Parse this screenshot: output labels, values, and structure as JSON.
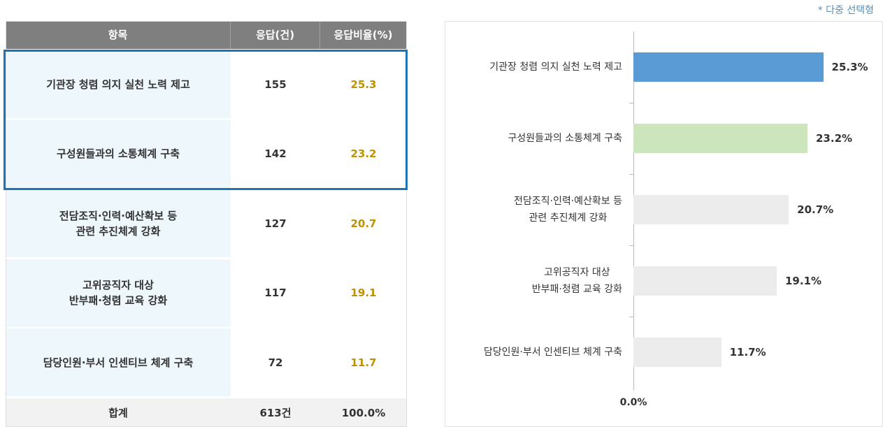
{
  "note": "* 다중 선택형",
  "table": {
    "header": [
      "항목",
      "응답(건)",
      "응답비율(%)"
    ],
    "rows": [
      [
        "기관장 청렴 의지 실천 노력 제고",
        155,
        25.3
      ],
      [
        "구성원들과의 소통체계 구축",
        142,
        23.2
      ],
      [
        "전담조직·인력·예산확보 등\n관련 추진체계 강화",
        127,
        20.7
      ],
      [
        "고위공직자 대상\n반부패·청렴 교육 강화",
        117,
        19.1
      ],
      [
        "담당인원·부서 인센티브 체계 구축",
        72,
        11.7
      ]
    ],
    "total": [
      "합계",
      "613건",
      "100.0%"
    ]
  },
  "chart_data": {
    "type": "bar",
    "orientation": "horizontal",
    "categories": [
      "기관장 청렴 의지 실천 노력 제고",
      "구성원들과의 소통체계 구축",
      "전담조직·인력·예산확보 등\n관련 추진체계 강화",
      "고위공직자 대상\n반부패·청렴 교육 강화",
      "담당인원·부서 인센티브 체계 구축"
    ],
    "values": [
      25.3,
      23.2,
      20.7,
      19.1,
      11.7
    ],
    "value_labels": [
      "25.3%",
      "23.2%",
      "20.7%",
      "19.1%",
      "11.7%"
    ],
    "colors": [
      "#5b9bd5",
      "#cde5bd",
      "#ececec",
      "#ececec",
      "#ececec"
    ],
    "xlim": [
      0,
      30
    ],
    "xticks": [
      {
        "value": 0,
        "label": "0.0%"
      }
    ]
  }
}
